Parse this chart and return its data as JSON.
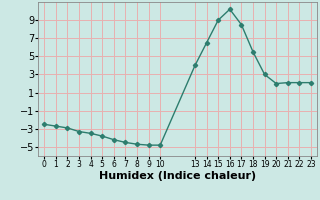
{
  "x": [
    0,
    1,
    2,
    3,
    4,
    5,
    6,
    7,
    8,
    9,
    10,
    13,
    14,
    15,
    16,
    17,
    18,
    19,
    20,
    21,
    22,
    23
  ],
  "y": [
    -2.5,
    -2.7,
    -2.9,
    -3.3,
    -3.5,
    -3.8,
    -4.2,
    -4.5,
    -4.7,
    -4.8,
    -4.8,
    4.0,
    6.5,
    9.0,
    10.2,
    8.5,
    5.5,
    3.0,
    2.0,
    2.1,
    2.1,
    2.1
  ],
  "line_color": "#2d7d6e",
  "marker_color": "#2d7d6e",
  "bg_color": "#cce8e4",
  "grid_color": "#e8b0b0",
  "xlabel": "Humidex (Indice chaleur)",
  "ylim": [
    -6,
    11
  ],
  "xlim": [
    -0.5,
    23.5
  ],
  "yticks": [
    -5,
    -3,
    -1,
    1,
    3,
    5,
    7,
    9
  ],
  "xlabel_fontsize": 8,
  "tick_fontsize": 7
}
